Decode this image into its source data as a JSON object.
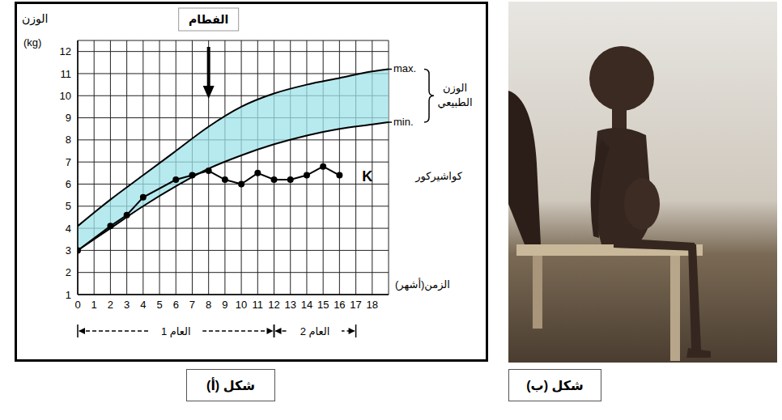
{
  "chart_data": {
    "type": "line",
    "y_label": "الوزن",
    "y_unit": "(kg)",
    "x_label": "الزمن(أشهر)",
    "xlim": [
      0,
      19
    ],
    "xticks": [
      0,
      1,
      2,
      3,
      4,
      5,
      6,
      7,
      8,
      9,
      10,
      11,
      12,
      13,
      14,
      15,
      16,
      17,
      18
    ],
    "ylim": [
      1,
      12.5
    ],
    "yticks": [
      1,
      2,
      3,
      4,
      5,
      6,
      7,
      8,
      9,
      10,
      11,
      12
    ],
    "grid": true,
    "series": [
      {
        "name": "max.",
        "color": "#000000",
        "x": [
          0,
          2,
          4,
          6,
          8,
          10,
          12,
          14,
          16,
          18,
          19
        ],
        "values": [
          4.1,
          5.3,
          6.4,
          7.5,
          8.6,
          9.5,
          10.1,
          10.5,
          10.8,
          11.1,
          11.2
        ]
      },
      {
        "name": "min.",
        "color": "#000000",
        "x": [
          0,
          2,
          4,
          6,
          8,
          10,
          12,
          14,
          16,
          18,
          19
        ],
        "values": [
          3.0,
          4.0,
          5.0,
          5.9,
          6.7,
          7.3,
          7.8,
          8.2,
          8.5,
          8.7,
          8.8
        ]
      },
      {
        "name": "K",
        "color": "#000000",
        "marker": "o",
        "x": [
          0,
          2,
          3,
          4,
          6,
          7,
          8,
          9,
          10,
          11,
          12,
          13,
          14,
          15,
          16
        ],
        "values": [
          3.0,
          4.1,
          4.6,
          5.4,
          6.2,
          6.4,
          6.6,
          6.2,
          6.0,
          6.5,
          6.2,
          6.2,
          6.4,
          6.8,
          6.4
        ]
      }
    ],
    "band": {
      "label": "الوزن الطبيعي",
      "between": [
        "max.",
        "min."
      ],
      "color": "#9fe3ea"
    },
    "annotations": [
      {
        "text": "الفطام",
        "x": 8
      },
      {
        "text": "كواشيركور",
        "series": "K"
      }
    ],
    "periods": [
      {
        "text": "العام 1",
        "x": [
          0,
          12
        ]
      },
      {
        "text": "العام 2",
        "x": [
          12,
          17
        ]
      }
    ]
  },
  "figures": {
    "a": {
      "caption": "شكل (أ)"
    },
    "b": {
      "caption": "شكل (ب)"
    }
  }
}
